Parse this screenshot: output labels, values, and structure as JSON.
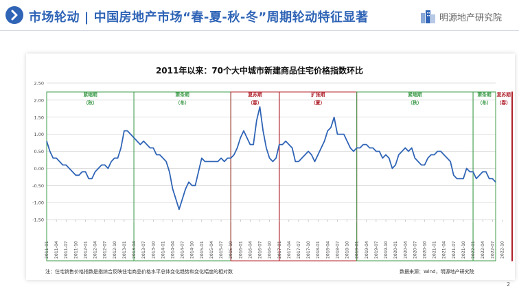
{
  "header": {
    "title": "市场轮动 | 中国房地产市场“春-夏-秋-冬”周期轮动特征显著",
    "logo_text": "明源地产研究院",
    "accent": "#2f64b6"
  },
  "chart_data": {
    "type": "line",
    "title": "2011年以来：70个大中城市新建商品住宅价格指数环比",
    "ylim": [
      -1.5,
      2.5
    ],
    "yticks": [
      "2.50",
      "2.00",
      "1.50",
      "1.00",
      "0.50",
      "0.00",
      "-0.50",
      "-1.00",
      "-1.50"
    ],
    "x_tick_labels": [
      "2011-01",
      "2011-04",
      "2011-07",
      "2011-10",
      "2012-01",
      "2012-04",
      "2012-07",
      "2012-10",
      "2013-01",
      "2013-04",
      "2013-07",
      "2013-10",
      "2014-01",
      "2014-04",
      "2014-07",
      "2014-10",
      "2015-01",
      "2015-04",
      "2015-07",
      "2015-10",
      "2016-01",
      "2016-04",
      "2016-07",
      "2016-10",
      "2017-01",
      "2017-04",
      "2017-07",
      "2017-10",
      "2018-01",
      "2018-04",
      "2018-07",
      "2018-10",
      "2019-01",
      "2019-04",
      "2019-07",
      "2019-10",
      "2020-01",
      "2020-04",
      "2020-07",
      "2020-10",
      "2021-01",
      "2021-04",
      "2021-07",
      "2021-10",
      "2022-01",
      "2022-04",
      "2022-07",
      "2022-10"
    ],
    "series": [
      {
        "name": "新建商品住宅价格指数环比",
        "color": "#2f64b6",
        "points": [
          [
            0,
            0.8
          ],
          [
            1,
            0.5
          ],
          [
            2,
            0.3
          ],
          [
            3,
            0.3
          ],
          [
            4,
            0.2
          ],
          [
            5,
            0.1
          ],
          [
            6,
            0.1
          ],
          [
            7,
            0.0
          ],
          [
            8,
            -0.1
          ],
          [
            9,
            -0.2
          ],
          [
            10,
            -0.2
          ],
          [
            11,
            -0.1
          ],
          [
            12,
            -0.1
          ],
          [
            13,
            -0.3
          ],
          [
            14,
            -0.3
          ],
          [
            15,
            -0.1
          ],
          [
            16,
            0.0
          ],
          [
            17,
            0.1
          ],
          [
            18,
            0.1
          ],
          [
            19,
            0.0
          ],
          [
            20,
            0.2
          ],
          [
            21,
            0.3
          ],
          [
            22,
            0.3
          ],
          [
            23,
            0.6
          ],
          [
            24,
            1.1
          ],
          [
            25,
            1.1
          ],
          [
            26,
            1.0
          ],
          [
            27,
            0.9
          ],
          [
            28,
            0.8
          ],
          [
            29,
            0.7
          ],
          [
            30,
            0.8
          ],
          [
            31,
            0.7
          ],
          [
            32,
            0.6
          ],
          [
            33,
            0.6
          ],
          [
            34,
            0.4
          ],
          [
            35,
            0.4
          ],
          [
            36,
            0.3
          ],
          [
            37,
            0.2
          ],
          [
            38,
            -0.1
          ],
          [
            39,
            -0.6
          ],
          [
            40,
            -0.9
          ],
          [
            41,
            -1.2
          ],
          [
            42,
            -0.9
          ],
          [
            43,
            -0.6
          ],
          [
            44,
            -0.4
          ],
          [
            45,
            -0.5
          ],
          [
            46,
            -0.5
          ],
          [
            47,
            -0.1
          ],
          [
            48,
            0.3
          ],
          [
            49,
            0.2
          ],
          [
            50,
            0.2
          ],
          [
            51,
            0.2
          ],
          [
            52,
            0.2
          ],
          [
            53,
            0.2
          ],
          [
            54,
            0.3
          ],
          [
            55,
            0.2
          ],
          [
            56,
            0.3
          ],
          [
            57,
            0.3
          ],
          [
            58,
            0.4
          ],
          [
            59,
            0.6
          ],
          [
            60,
            0.9
          ],
          [
            61,
            1.1
          ],
          [
            62,
            0.9
          ],
          [
            63,
            0.7
          ],
          [
            64,
            0.7
          ],
          [
            65,
            1.4
          ],
          [
            66,
            1.8
          ],
          [
            67,
            1.1
          ],
          [
            68,
            0.6
          ],
          [
            69,
            0.3
          ],
          [
            70,
            0.2
          ],
          [
            71,
            0.3
          ],
          [
            72,
            0.7
          ],
          [
            73,
            0.7
          ],
          [
            74,
            0.8
          ],
          [
            75,
            0.7
          ],
          [
            76,
            0.6
          ],
          [
            77,
            0.2
          ],
          [
            78,
            0.2
          ],
          [
            79,
            0.3
          ],
          [
            80,
            0.4
          ],
          [
            81,
            0.5
          ],
          [
            82,
            0.4
          ],
          [
            83,
            0.2
          ],
          [
            84,
            0.4
          ],
          [
            85,
            0.6
          ],
          [
            86,
            0.8
          ],
          [
            87,
            1.1
          ],
          [
            88,
            1.2
          ],
          [
            89,
            1.5
          ],
          [
            90,
            1.0
          ],
          [
            91,
            1.0
          ],
          [
            92,
            1.0
          ],
          [
            93,
            0.8
          ],
          [
            94,
            0.6
          ],
          [
            95,
            0.5
          ],
          [
            96,
            0.6
          ],
          [
            97,
            0.6
          ],
          [
            98,
            0.7
          ],
          [
            99,
            0.7
          ],
          [
            100,
            0.6
          ],
          [
            101,
            0.6
          ],
          [
            102,
            0.5
          ],
          [
            103,
            0.5
          ],
          [
            104,
            0.3
          ],
          [
            105,
            0.4
          ],
          [
            106,
            0.3
          ],
          [
            107,
            0.0
          ],
          [
            108,
            0.1
          ],
          [
            109,
            0.4
          ],
          [
            110,
            0.5
          ],
          [
            111,
            0.6
          ],
          [
            112,
            0.5
          ],
          [
            113,
            0.6
          ],
          [
            114,
            0.3
          ],
          [
            115,
            0.2
          ],
          [
            116,
            0.1
          ],
          [
            117,
            0.1
          ],
          [
            118,
            0.3
          ],
          [
            119,
            0.4
          ],
          [
            120,
            0.4
          ],
          [
            121,
            0.5
          ],
          [
            122,
            0.5
          ],
          [
            123,
            0.4
          ],
          [
            124,
            0.3
          ],
          [
            125,
            0.2
          ],
          [
            126,
            -0.2
          ],
          [
            127,
            -0.3
          ],
          [
            128,
            -0.3
          ],
          [
            129,
            -0.3
          ],
          [
            130,
            0.0
          ],
          [
            131,
            -0.1
          ],
          [
            132,
            -0.1
          ],
          [
            133,
            -0.3
          ],
          [
            134,
            -0.2
          ],
          [
            135,
            -0.1
          ],
          [
            136,
            -0.1
          ],
          [
            137,
            -0.3
          ],
          [
            138,
            -0.3
          ],
          [
            139,
            -0.4
          ]
        ]
      }
    ],
    "x_range": [
      0,
      142
    ],
    "phases": [
      {
        "name": "紧缩期",
        "season": "秋",
        "start": 0,
        "end": 12,
        "color": "#3e9b4a"
      },
      {
        "name": "萧条期",
        "season": "冬",
        "start": 12,
        "end": 23,
        "color": "#3e9b4a"
      },
      {
        "name": "复苏期",
        "season": "春",
        "start": 23,
        "end": 33,
        "color": "#b0202a"
      },
      {
        "name": "扩张期",
        "season": "夏",
        "start": 33,
        "end": 43,
        "color": "#b0202a"
      },
      {
        "name": "紧缩期",
        "season": "秋",
        "start": 43,
        "end": 61,
        "color": "#3e9b4a"
      },
      {
        "name": "萧条期",
        "season": "冬",
        "start": 61,
        "end": 71,
        "color": "#3e9b4a"
      },
      {
        "name": "复苏期",
        "season": "春",
        "start": 71,
        "end": 80,
        "color": "#b0202a"
      },
      {
        "name": "扩张期",
        "season": "夏",
        "start": 80,
        "end": 129,
        "color": "#b0202a"
      },
      {
        "name": "紧缩期",
        "season": "秋",
        "start": 129,
        "end": 197,
        "color": "#3e9b4a"
      },
      {
        "name": "萧条期",
        "season": "冬",
        "start": 197,
        "end": 262,
        "color": "#3e9b4a"
      }
    ],
    "phase_spans_in_x": [
      [
        0,
        9
      ],
      [
        9,
        19
      ],
      [
        19,
        24
      ],
      [
        24,
        32
      ],
      [
        32,
        44
      ],
      [
        44,
        48
      ],
      [
        48,
        53
      ],
      [
        53,
        89
      ],
      [
        89,
        127
      ],
      [
        127,
        141
      ]
    ],
    "grid_color": "#bfbfbf"
  },
  "footer": {
    "note": "注：住宅销售价格指数是指综合反映住宅商品价格水平总体变化趋势和变化幅度的相对数",
    "source": "数据来源：Wind，明源地产研究院",
    "page_number": "2"
  }
}
